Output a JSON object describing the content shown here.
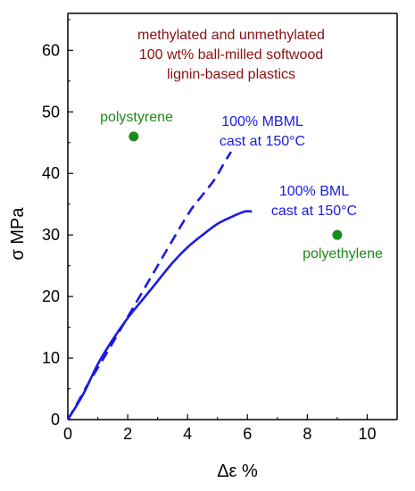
{
  "chart_data": {
    "type": "line",
    "title_lines": [
      "methylated and unmethylated",
      "100 wt% ball-milled softwood",
      "lignin-based plastics"
    ],
    "xlabel": "Δε %",
    "ylabel": "σ MPa",
    "xlim": [
      0,
      11
    ],
    "ylim": [
      0,
      66
    ],
    "x_ticks": [
      0,
      2,
      4,
      6,
      8,
      10
    ],
    "y_ticks": [
      0,
      10,
      20,
      30,
      40,
      50,
      60
    ],
    "grid": false,
    "series": [
      {
        "name": "",
        "label_lines": [
          "100% MBML",
          "cast at 150°C"
        ],
        "style": "dashed",
        "color": "#1a1ae6",
        "points": [
          [
            0,
            0
          ],
          [
            0.3,
            2.5
          ],
          [
            0.7,
            6
          ],
          [
            1.2,
            10
          ],
          [
            1.8,
            15
          ],
          [
            2.4,
            20
          ],
          [
            3.0,
            25
          ],
          [
            3.6,
            30
          ],
          [
            4.1,
            34
          ],
          [
            4.5,
            36.5
          ],
          [
            4.9,
            39
          ],
          [
            5.2,
            41.5
          ],
          [
            5.45,
            43.5
          ]
        ]
      },
      {
        "name": "",
        "label_lines": [
          "100% BML",
          "cast at 150°C"
        ],
        "style": "solid",
        "color": "#1a1ae6",
        "points": [
          [
            0,
            0
          ],
          [
            0.5,
            4
          ],
          [
            1.0,
            9
          ],
          [
            1.5,
            13
          ],
          [
            2.0,
            16.5
          ],
          [
            2.5,
            19.5
          ],
          [
            3.0,
            22.5
          ],
          [
            3.5,
            25.5
          ],
          [
            4.0,
            28
          ],
          [
            4.5,
            30
          ],
          [
            5.0,
            31.8
          ],
          [
            5.5,
            33
          ],
          [
            5.9,
            33.8
          ],
          [
            6.15,
            33.8
          ]
        ]
      }
    ],
    "reference_points": [
      {
        "label": "polystyrene",
        "x": 2.2,
        "y": 46,
        "color": "#1b8a1b"
      },
      {
        "label": "polyethylene",
        "x": 9.0,
        "y": 30,
        "color": "#1b8a1b"
      }
    ],
    "colors": {
      "title": "#8b1010",
      "curves": "#1a1ae6",
      "references": "#1b8a1b",
      "axis": "#000000"
    }
  }
}
